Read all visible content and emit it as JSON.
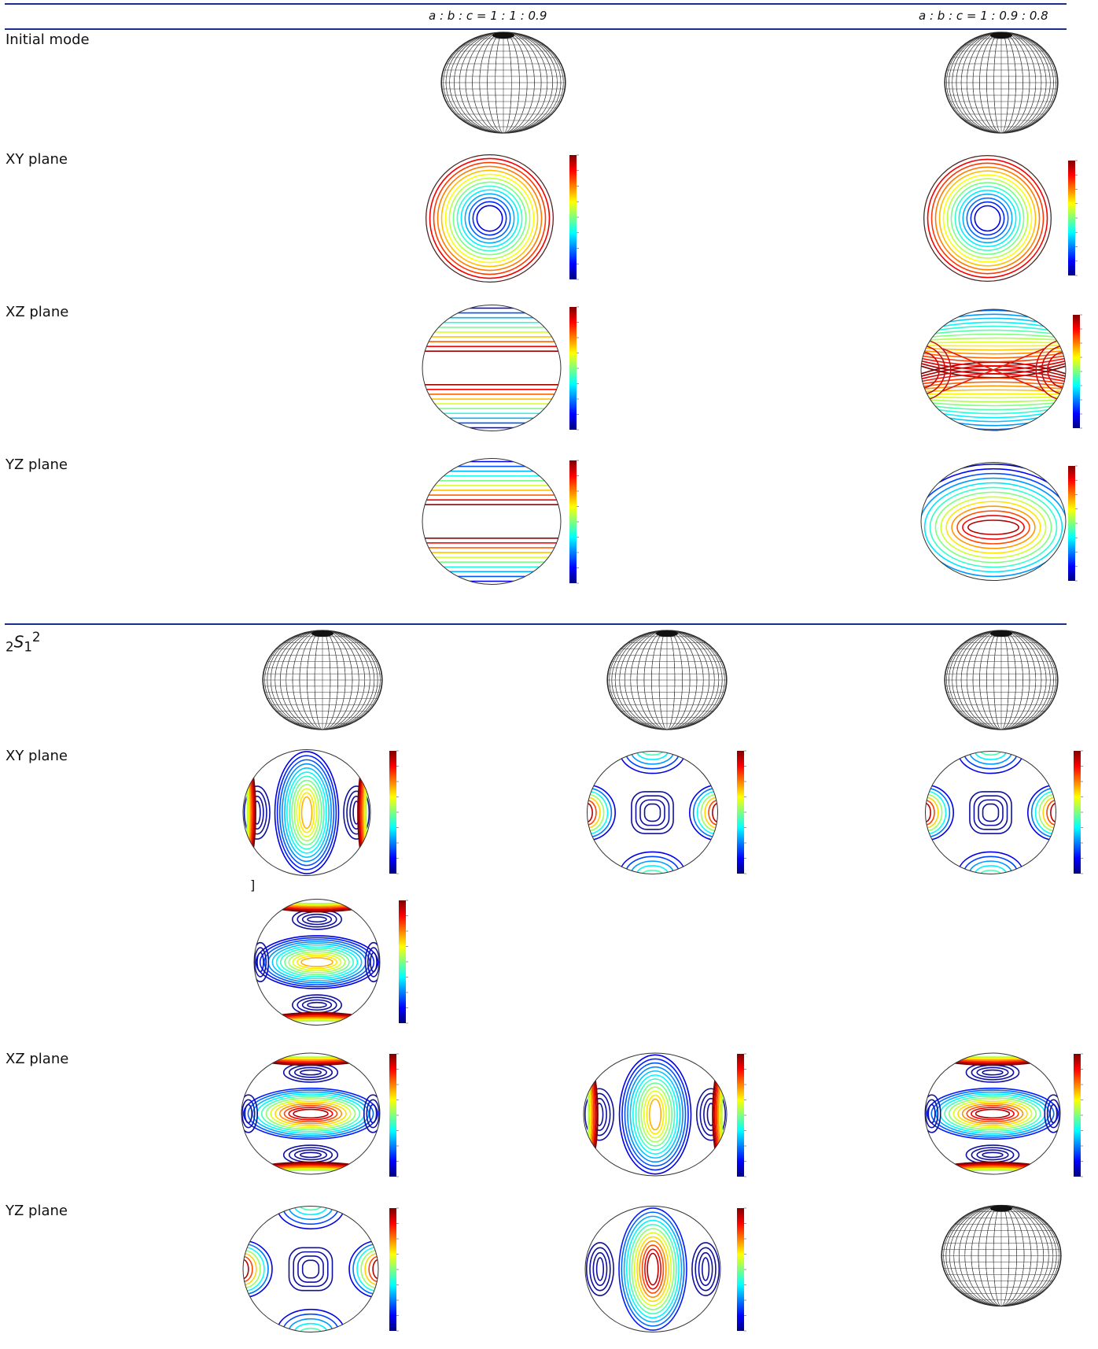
{
  "table": {
    "col1_header": "a : b : c = 1 : 1 : 0.9",
    "col2_header": "a : b : c = 1 : 0.9 : 0.8",
    "section1": {
      "title": "Initial mode",
      "rows": [
        "XY plane",
        "XZ plane",
        "YZ plane"
      ]
    },
    "section2": {
      "title_pre": "2",
      "title_main": "S",
      "title_sub": "1",
      "title_sup": "2",
      "rows": [
        "XY plane",
        "XZ plane",
        "YZ plane"
      ],
      "bracket": "]"
    }
  },
  "colors": {
    "rule": "#1a2f8a",
    "jet": [
      "#00007f",
      "#0000ff",
      "#007fff",
      "#00ffff",
      "#7fff7f",
      "#ffff00",
      "#ff7f00",
      "#ff0000",
      "#7f0000"
    ]
  }
}
